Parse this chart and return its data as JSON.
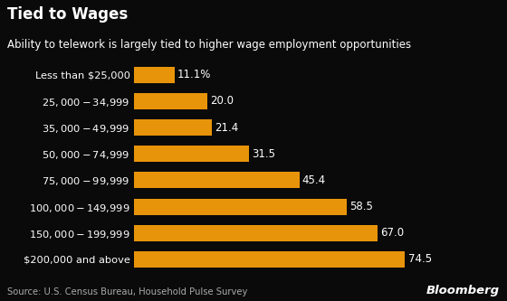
{
  "title": "Tied to Wages",
  "subtitle": "Ability to telework is largely tied to higher wage employment opportunities",
  "categories": [
    "Less than $25,000",
    "$25,000 - $34,999",
    "$35,000 - $49,999",
    "$50,000 - $74,999",
    "$75,000 - $99,999",
    "$100,000 - $149,999",
    "$150,000 - $199,999",
    "$200,000 and above"
  ],
  "values": [
    11.1,
    20.0,
    21.4,
    31.5,
    45.4,
    58.5,
    67.0,
    74.5
  ],
  "labels": [
    "11.1%",
    "20.0",
    "21.4",
    "31.5",
    "45.4",
    "58.5",
    "67.0",
    "74.5"
  ],
  "bar_color": "#E8940A",
  "background_color": "#0a0a0a",
  "text_color": "#ffffff",
  "source_text": "Source: U.S. Census Bureau, Household Pulse Survey",
  "bloomberg_text": "Bloomberg",
  "xlim": [
    0,
    90
  ],
  "title_fontsize": 12,
  "subtitle_fontsize": 8.5,
  "label_fontsize": 8.5,
  "category_fontsize": 8.2,
  "source_fontsize": 7.2
}
